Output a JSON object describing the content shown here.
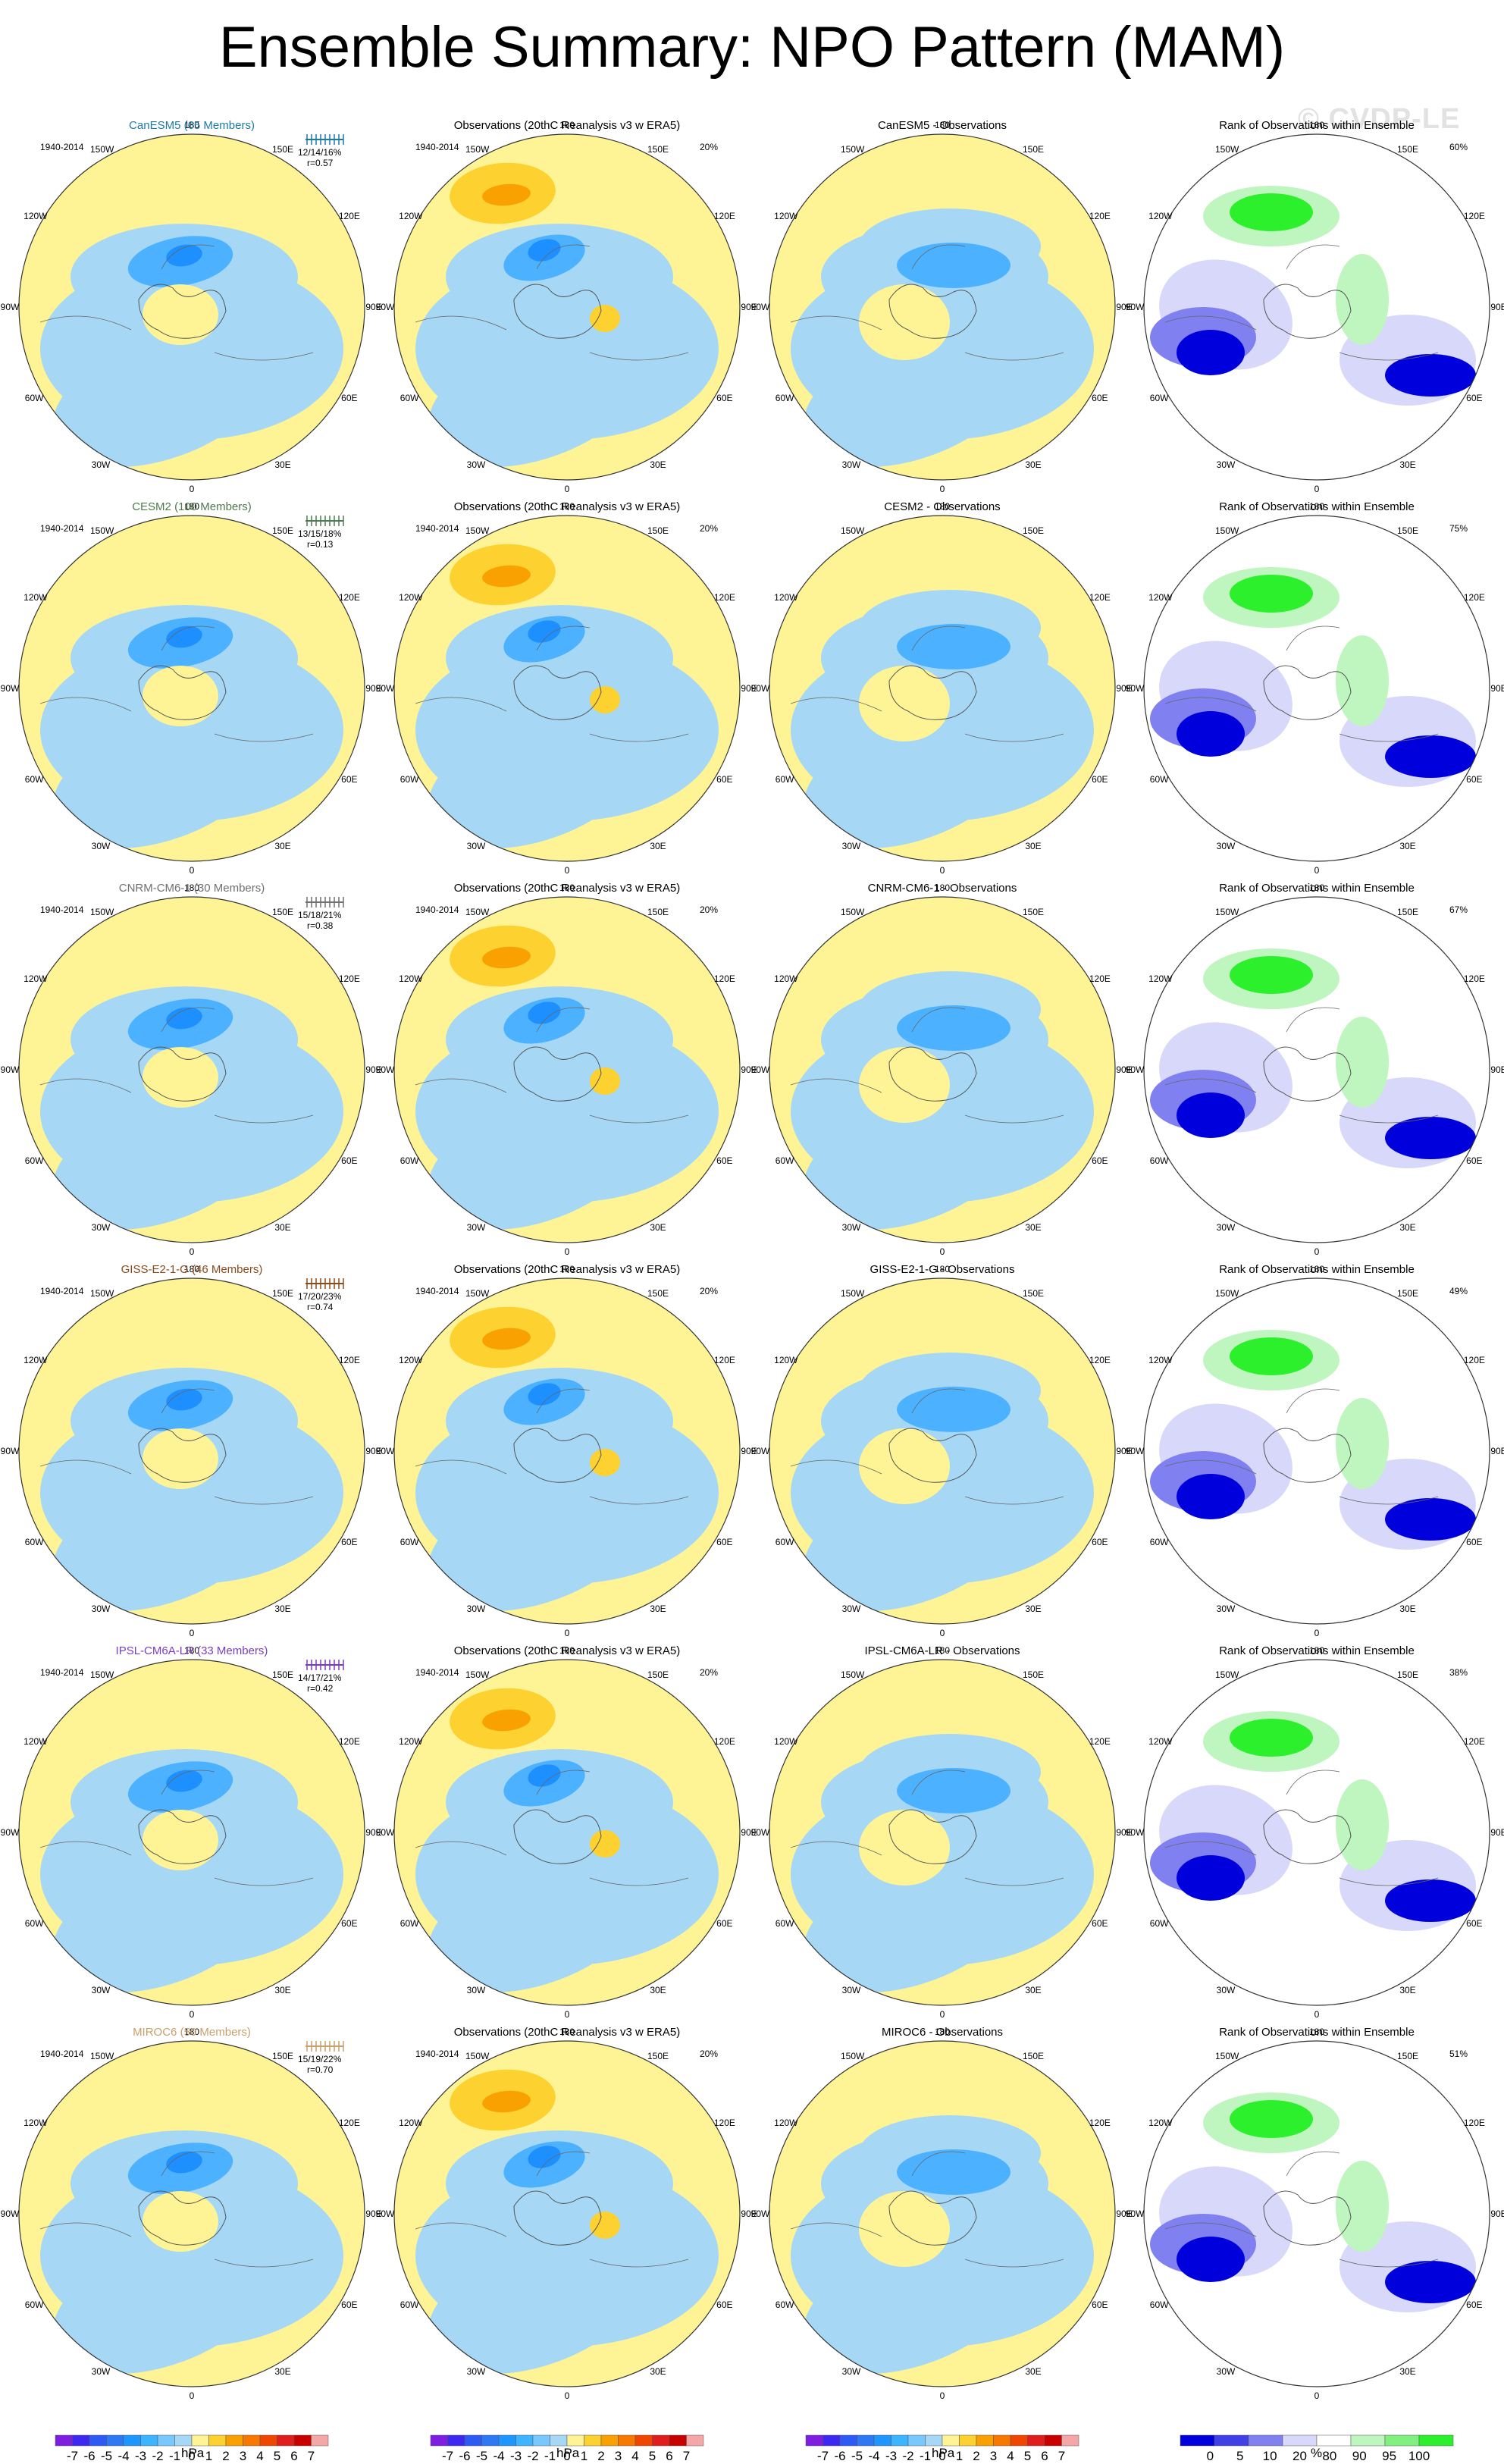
{
  "title": "Ensemble Summary: NPO Pattern (MAM)",
  "watermark": "© CVDP-LE",
  "period": "1940-2014",
  "column_titles": {
    "observations": "Observations (20thC Reanalysis v3 w ERA5)",
    "rank": "Rank of Observations within Ensemble"
  },
  "obs_pct": "20%",
  "lon_labels": [
    "180",
    "150E",
    "120E",
    "90E",
    "60E",
    "30E",
    "0",
    "30W",
    "60W",
    "90W",
    "120W",
    "150W"
  ],
  "colors": {
    "neg3": "#1e8fff",
    "neg2": "#4cb2ff",
    "neg1": "#a6d8f6",
    "pos1": "#fff495",
    "pos2": "#fdd12f",
    "pos3": "#f9a100",
    "rank_blue": "#0000dc",
    "rank_mid": "#8080f0",
    "rank_light": "#d8d8fa",
    "rank_green": "#2cf02c",
    "rank_lightgreen": "#bff5bf"
  },
  "models": [
    {
      "name": "CanESM5 (65 Members)",
      "diff_title": "CanESM5 - Observations",
      "stats": "12/14/16%",
      "r": "r=0.57",
      "rank_pct": "60%",
      "color": "#1b7aa8"
    },
    {
      "name": "CESM2 (100 Members)",
      "diff_title": "CESM2 - Observations",
      "stats": "13/15/18%",
      "r": "r=0.13",
      "rank_pct": "75%",
      "color": "#4f7a50"
    },
    {
      "name": "CNRM-CM6-1 (30 Members)",
      "diff_title": "CNRM-CM6-1 - Observations",
      "stats": "15/18/21%",
      "r": "r=0.38",
      "rank_pct": "67%",
      "color": "#707070"
    },
    {
      "name": "GISS-E2-1-G (46 Members)",
      "diff_title": "GISS-E2-1-G - Observations",
      "stats": "17/20/23%",
      "r": "r=0.74",
      "rank_pct": "49%",
      "color": "#8a4a1a"
    },
    {
      "name": "IPSL-CM6A-LR (33 Members)",
      "diff_title": "IPSL-CM6A-LR - Observations",
      "stats": "14/17/21%",
      "r": "r=0.42",
      "rank_pct": "38%",
      "color": "#7a3fc0"
    },
    {
      "name": "MIROC6 (50 Members)",
      "diff_title": "MIROC6 - Observations",
      "stats": "15/19/22%",
      "r": "r=0.70",
      "rank_pct": "51%",
      "color": "#c8a06a"
    }
  ],
  "chart_data": {
    "type": "heatmap",
    "projection": "north polar stereographic",
    "units": "hPa",
    "colorbar_slp": {
      "labels": [
        "-7",
        "-6",
        "-5",
        "-4",
        "-3",
        "-2",
        "-1",
        "0",
        "1",
        "2",
        "3",
        "4",
        "5",
        "6",
        "7"
      ],
      "colors": [
        "#7e1ee0",
        "#3c28f0",
        "#2d5af5",
        "#2d78f5",
        "#1e96ff",
        "#3cb4ff",
        "#78c8ff",
        "#a6d8f6",
        "#fff495",
        "#fdd12f",
        "#f9a100",
        "#f97800",
        "#f04600",
        "#e01e1e",
        "#c80000",
        "#f5a6a6"
      ]
    },
    "colorbar_rank": {
      "labels": [
        "0",
        "5",
        "10",
        "20",
        "80",
        "90",
        "95",
        "100"
      ],
      "unit": "%",
      "colors": [
        "#0000dc",
        "#4040e6",
        "#8080f0",
        "#d8d8fa",
        "#ffffff",
        "#bff5bf",
        "#80f080",
        "#2cf02c"
      ]
    }
  }
}
